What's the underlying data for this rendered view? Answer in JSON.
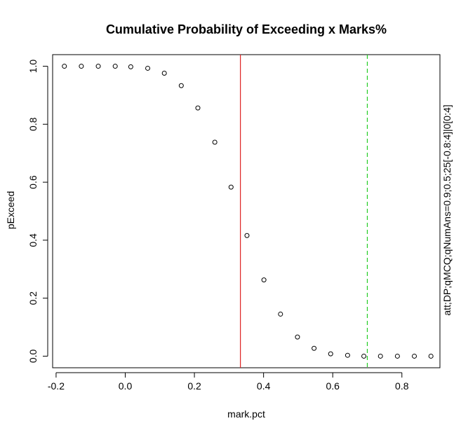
{
  "chart_data": {
    "type": "scatter",
    "title": "Cumulative Probability of Exceeding x Marks%",
    "xlabel": "mark.pct",
    "ylabel": "pExceed",
    "side_label": "att;DP;qMCQ;qNumAns=0.9;0.5;25[-0.8:4]|0[0:4]",
    "xlim": [
      -0.21,
      0.91
    ],
    "ylim": [
      -0.04,
      1.04
    ],
    "x_ticks": [
      -0.2,
      0.0,
      0.2,
      0.4,
      0.6,
      0.8
    ],
    "x_tick_labels": [
      "-0.2",
      "0.0",
      "0.2",
      "0.4",
      "0.6",
      "0.8"
    ],
    "y_ticks": [
      0.0,
      0.2,
      0.4,
      0.6,
      0.8,
      1.0
    ],
    "y_tick_labels": [
      "0.0",
      "0.2",
      "0.4",
      "0.6",
      "0.8",
      "1.0"
    ],
    "x": [
      -0.176,
      -0.127,
      -0.078,
      -0.029,
      0.016,
      0.065,
      0.113,
      0.162,
      0.21,
      0.259,
      0.306,
      0.352,
      0.401,
      0.449,
      0.498,
      0.546,
      0.594,
      0.643,
      0.69,
      0.738,
      0.787,
      0.836,
      0.884
    ],
    "y": [
      1.0,
      1.0,
      1.0,
      1.0,
      0.998,
      0.993,
      0.976,
      0.933,
      0.856,
      0.738,
      0.583,
      0.416,
      0.263,
      0.145,
      0.066,
      0.027,
      0.008,
      0.003,
      0.0,
      0.0,
      0.0,
      0.0,
      0.0
    ],
    "vlines": [
      {
        "x": 0.333,
        "color": "#dd2222",
        "style": "solid"
      },
      {
        "x": 0.7,
        "color": "#22cc22",
        "style": "dashed"
      }
    ],
    "grid": false,
    "legend": "none"
  }
}
